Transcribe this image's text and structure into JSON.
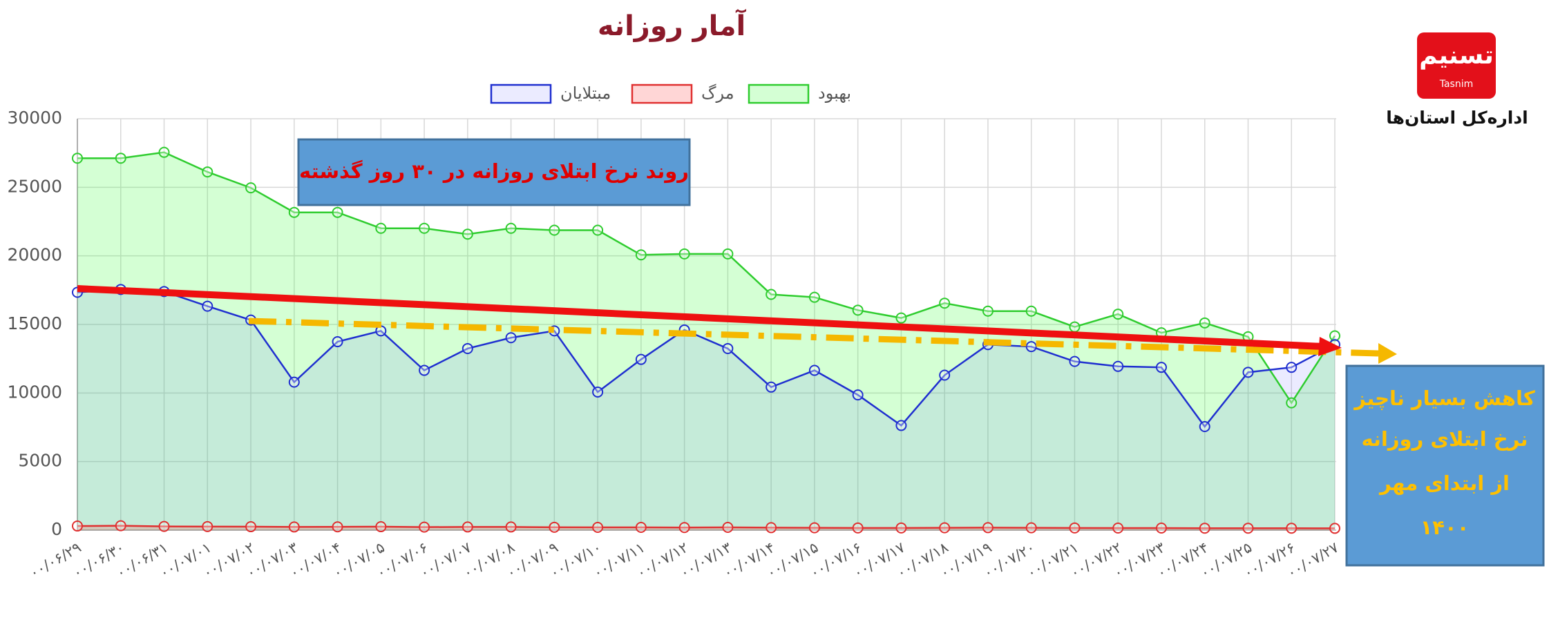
{
  "chart_data": {
    "type": "line",
    "title": "آمار روزانه",
    "annotation": "روند نرخ ابتلای روزانه در ۳۰ روز گذشته",
    "note_lines": [
      "کاهش بسیار ناچیز",
      "نرخ ابتلای روزانه",
      "از ابتدای مهر",
      "۱۴۰۰"
    ],
    "logo_text": "تسنیم",
    "logo_subtext": "Tasnim",
    "agency_label": "اداره‌کل استان‌ها",
    "categories": [
      "۰۰/۰۶/۲۹",
      "۰۰/۰۶/۳۰",
      "۰۰/۰۶/۳۱",
      "۰۰/۰۷/۰۱",
      "۰۰/۰۷/۰۲",
      "۰۰/۰۷/۰۳",
      "۰۰/۰۷/۰۴",
      "۰۰/۰۷/۰۵",
      "۰۰/۰۷/۰۶",
      "۰۰/۰۷/۰۷",
      "۰۰/۰۷/۰۸",
      "۰۰/۰۷/۰۹",
      "۰۰/۰۷/۱۰",
      "۰۰/۰۷/۱۱",
      "۰۰/۰۷/۱۲",
      "۰۰/۰۷/۱۳",
      "۰۰/۰۷/۱۴",
      "۰۰/۰۷/۱۵",
      "۰۰/۰۷/۱۶",
      "۰۰/۰۷/۱۷",
      "۰۰/۰۷/۱۸",
      "۰۰/۰۷/۱۹",
      "۰۰/۰۷/۲۰",
      "۰۰/۰۷/۲۱",
      "۰۰/۰۷/۲۲",
      "۰۰/۰۷/۲۳",
      "۰۰/۰۷/۲۴",
      "۰۰/۰۷/۲۵",
      "۰۰/۰۷/۲۶",
      "۰۰/۰۷/۲۷"
    ],
    "series": [
      {
        "name": "مبتلایان",
        "color": "#1f2fd0",
        "fill": "rgba(90,90,255,0.12)",
        "values": [
          17340,
          17550,
          17400,
          16330,
          15320,
          10790,
          13740,
          14530,
          11650,
          13240,
          14030,
          14530,
          10070,
          12450,
          14600,
          13240,
          10430,
          11650,
          9860,
          7630,
          11300,
          13530,
          13380,
          12300,
          11940,
          11870,
          7550,
          11510,
          11870,
          13530
        ]
      },
      {
        "name": "مرگ",
        "color": "#e03030",
        "fill": "rgba(255,90,90,0.25)",
        "values": [
          300,
          320,
          270,
          260,
          250,
          230,
          240,
          250,
          220,
          230,
          230,
          210,
          200,
          200,
          190,
          200,
          180,
          170,
          160,
          160,
          170,
          180,
          170,
          160,
          150,
          150,
          140,
          140,
          140,
          130
        ]
      },
      {
        "name": "بهبود",
        "color": "#2ecc2e",
        "fill": "rgba(60,255,60,0.22)",
        "values": [
          27120,
          27120,
          27550,
          26120,
          24960,
          23170,
          23170,
          22010,
          22010,
          21580,
          22010,
          21870,
          21870,
          20070,
          20140,
          20140,
          17190,
          16980,
          16040,
          15470,
          16550,
          15970,
          15970,
          14820,
          15750,
          14390,
          15110,
          14100,
          9280,
          14170
        ]
      }
    ],
    "ylim": [
      0,
      30000
    ],
    "yticks": [
      0,
      5000,
      10000,
      15000,
      20000,
      25000,
      30000
    ],
    "grid": true
  }
}
